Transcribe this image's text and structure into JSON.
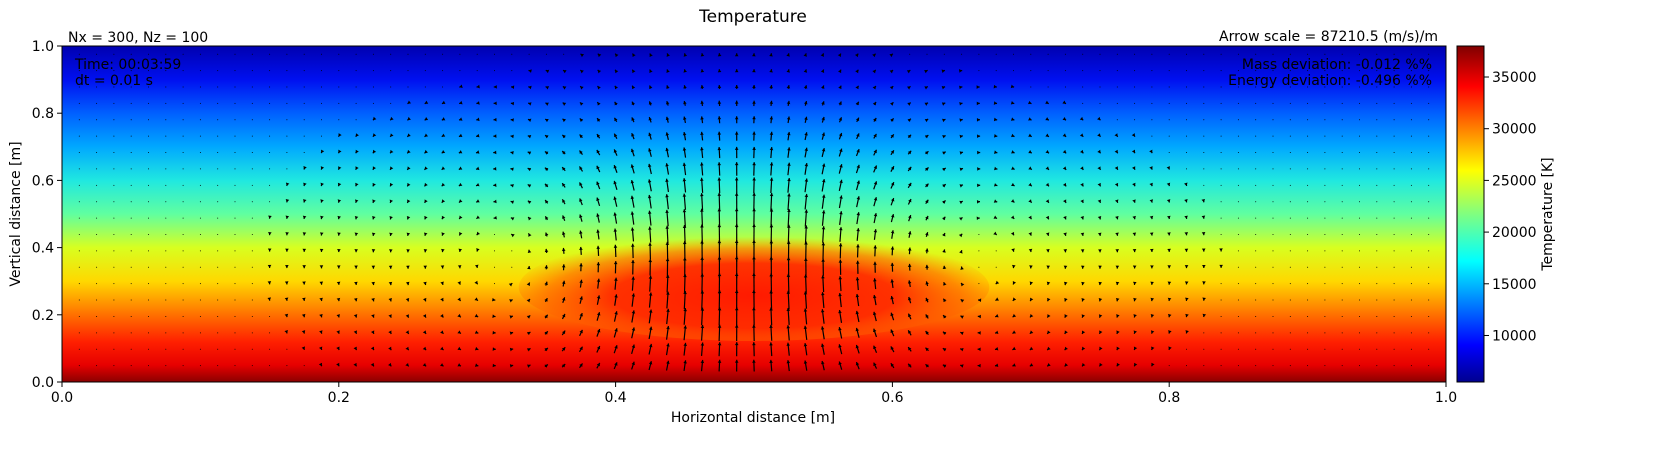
{
  "chart_data": {
    "type": "heatmap",
    "title": "Temperature",
    "xlabel": "Horizontal distance [m]",
    "ylabel": "Vertical distance [m]",
    "xlim": [
      0.0,
      1.0
    ],
    "ylim": [
      0.0,
      1.0
    ],
    "x_ticks": [
      "0.0",
      "0.2",
      "0.4",
      "0.6",
      "0.8",
      "1.0"
    ],
    "y_ticks": [
      "0.0",
      "0.2",
      "0.4",
      "0.6",
      "0.8",
      "1.0"
    ],
    "colorbar": {
      "label": "Temperature [K]",
      "range": [
        5500,
        38000
      ],
      "ticks": [
        "10000",
        "15000",
        "20000",
        "25000",
        "30000",
        "35000"
      ],
      "colormap": "jet"
    },
    "field": {
      "background_profile": "temperature decreasing with height, approx 38000 K at z=0 to 5500 K at z=1",
      "bubble": {
        "center_x": 0.5,
        "center_z": 0.3,
        "radius_x": 0.17,
        "radius_z": 0.16,
        "peak_temperature": 34500
      }
    },
    "vector_field": {
      "type": "quiver",
      "color": "#000000",
      "pattern": "convective cell centered near x=0.5, upward flow in center"
    },
    "annotations": {
      "grid_info": "Nx = 300, Nz = 100",
      "arrow_scale": "Arrow scale = 87210.5 (m/s)/m",
      "time": "Time: 00:03:59",
      "dt": "dt = 0.01 s",
      "mass_deviation": "Mass deviation: -0.012 %%",
      "energy_deviation": "Energy deviation: -0.496 %%"
    }
  }
}
